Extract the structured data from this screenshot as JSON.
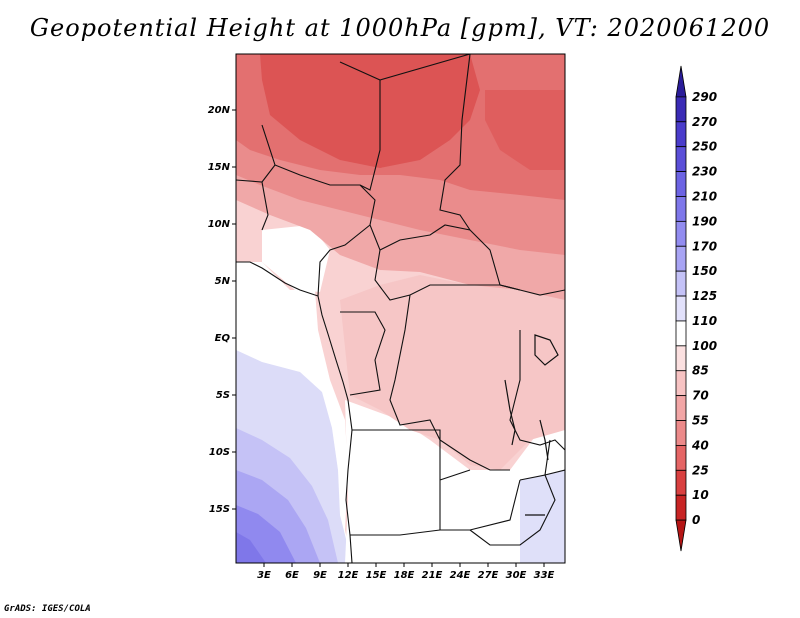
{
  "title": "Geopotential Height at 1000hPa [gpm], VT: 2020061200",
  "credit": "GrADS: IGES/COLA",
  "map": {
    "variable": "Geopotential Height at 1000hPa",
    "units": "gpm",
    "valid_time": "2020061200",
    "lat_labels": [
      "20N",
      "15N",
      "10N",
      "5N",
      "EQ",
      "5S",
      "10S",
      "15S"
    ],
    "lon_labels": [
      "3E",
      "6E",
      "9E",
      "12E",
      "15E",
      "18E",
      "21E",
      "24E",
      "27E",
      "30E",
      "33E"
    ]
  },
  "colorbar": {
    "levels": [
      "290",
      "270",
      "250",
      "230",
      "210",
      "190",
      "170",
      "150",
      "125",
      "110",
      "100",
      "85",
      "70",
      "55",
      "40",
      "25",
      "10",
      "0"
    ],
    "colors": [
      "#2a1c99",
      "#3a2bb5",
      "#4a3ccb",
      "#5b4fd8",
      "#6c63e3",
      "#7e77ea",
      "#928cf0",
      "#a8a4f4",
      "#c4c2f7",
      "#e2e1fb",
      "#ffffff",
      "#fbe0e0",
      "#f7c3c3",
      "#f2a6a6",
      "#ec8a8a",
      "#e56565",
      "#d94040",
      "#c82424",
      "#b51515"
    ]
  }
}
